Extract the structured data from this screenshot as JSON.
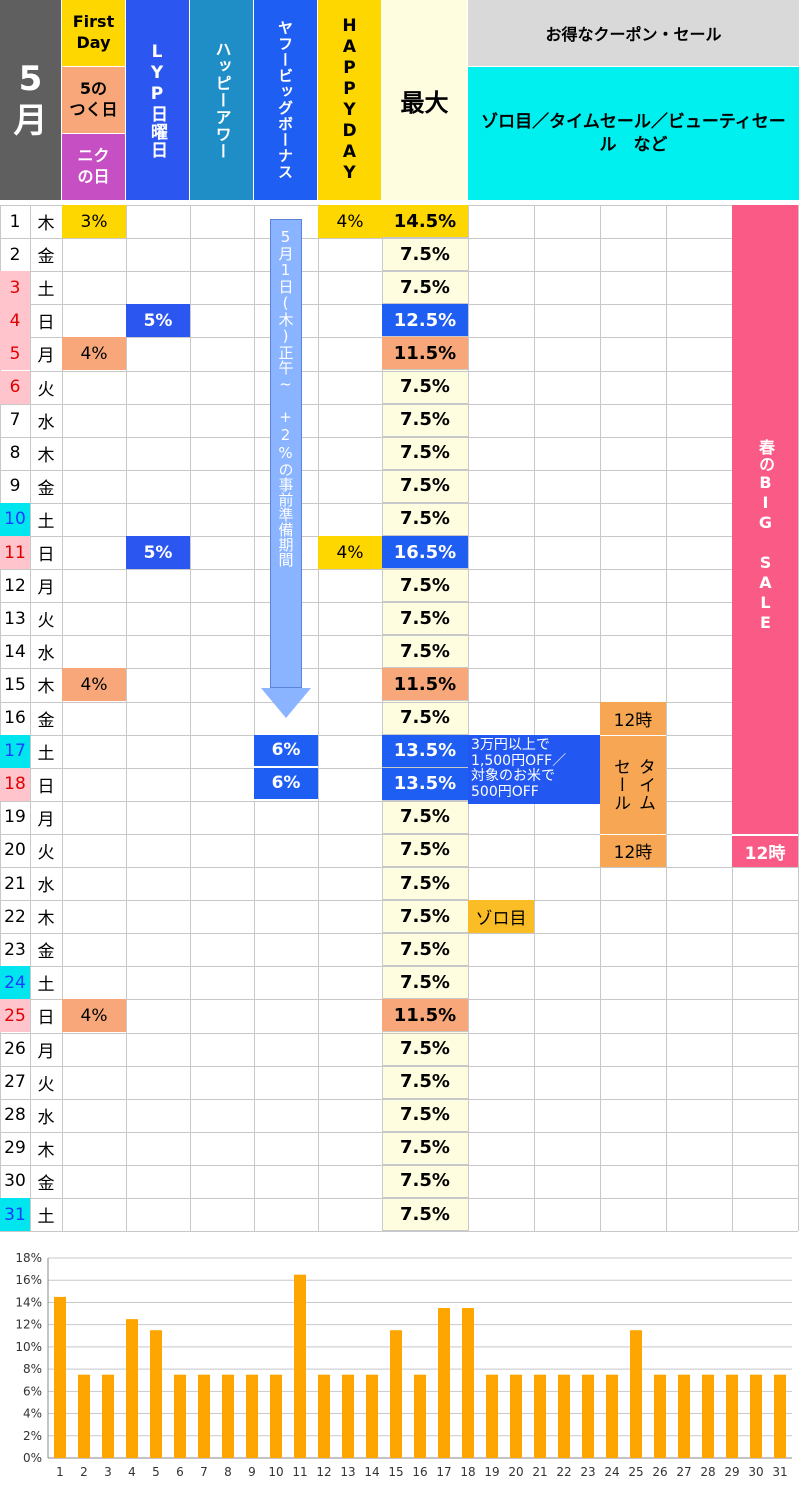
{
  "header": {
    "month": "5\n月",
    "first_day": "First\nDay",
    "five_day": "5の\nつく日",
    "niku_day": "ニク\nの日",
    "lyp_sunday": "LYP日曜日",
    "happy_hour": "ハッピーアワー",
    "yahoo_bonus": "ヤフービッグボーナス",
    "happy_day": "HAPPYDAY",
    "max": "最大",
    "coupon_title": "お得なクーポン・セール",
    "coupon_sub": "ゾロ目／タイムセール／ビューティセール　など"
  },
  "colors": {
    "month_bg": "#5f5f5f",
    "first_day_bg": "#ffd700",
    "five_day_bg": "#f7a77a",
    "niku_bg": "#c64fc4",
    "lyp_bg": "#2c56f0",
    "happy_hour_bg": "#1f8ec7",
    "bonus_bg": "#1f5ef2",
    "happy_day_bg": "#ffd700",
    "max_bg": "#fffde0",
    "coupon_title_bg": "#d9d9d9",
    "coupon_sub_bg": "#00f0f0",
    "saturday_bg": "#00e5ee",
    "holiday_bg": "#ffc4cc",
    "holiday_text": "#e00000",
    "big_sale_bg": "#fa5a86",
    "time_sale_bg": "#f7a653",
    "zorome_bg": "#fbbd26",
    "coupon_box_bg": "#2257f2",
    "bonus_arrow": "#8ab4ff",
    "bar_color": "#ffa500"
  },
  "days": [
    {
      "d": "1",
      "w": "木",
      "t": "n",
      "fd": "3%",
      "hd": "4%",
      "max": "14.5%",
      "m": "bold"
    },
    {
      "d": "2",
      "w": "金",
      "t": "n",
      "max": "7.5%"
    },
    {
      "d": "3",
      "w": "土",
      "t": "h",
      "max": "7.5%"
    },
    {
      "d": "4",
      "w": "日",
      "t": "h",
      "lyp": "5%",
      "max": "12.5%",
      "m": "blue"
    },
    {
      "d": "5",
      "w": "月",
      "t": "h",
      "fd": "4%",
      "fdc": "orange",
      "max": "11.5%",
      "m": "orange"
    },
    {
      "d": "6",
      "w": "火",
      "t": "h",
      "max": "7.5%"
    },
    {
      "d": "7",
      "w": "水",
      "t": "n",
      "max": "7.5%"
    },
    {
      "d": "8",
      "w": "木",
      "t": "n",
      "max": "7.5%"
    },
    {
      "d": "9",
      "w": "金",
      "t": "n",
      "max": "7.5%"
    },
    {
      "d": "10",
      "w": "土",
      "t": "s",
      "max": "7.5%"
    },
    {
      "d": "11",
      "w": "日",
      "t": "h",
      "lyp": "5%",
      "hd": "4%",
      "max": "16.5%",
      "m": "blue"
    },
    {
      "d": "12",
      "w": "月",
      "t": "n",
      "max": "7.5%"
    },
    {
      "d": "13",
      "w": "火",
      "t": "n",
      "max": "7.5%"
    },
    {
      "d": "14",
      "w": "水",
      "t": "n",
      "max": "7.5%"
    },
    {
      "d": "15",
      "w": "木",
      "t": "n",
      "fd": "4%",
      "fdc": "orange",
      "max": "11.5%",
      "m": "orange"
    },
    {
      "d": "16",
      "w": "金",
      "t": "n",
      "max": "7.5%"
    },
    {
      "d": "17",
      "w": "土",
      "t": "s",
      "bonus": "6%",
      "max": "13.5%",
      "m": "blue"
    },
    {
      "d": "18",
      "w": "日",
      "t": "h",
      "bonus": "6%",
      "max": "13.5%",
      "m": "blue"
    },
    {
      "d": "19",
      "w": "月",
      "t": "n",
      "max": "7.5%"
    },
    {
      "d": "20",
      "w": "火",
      "t": "n",
      "max": "7.5%"
    },
    {
      "d": "21",
      "w": "水",
      "t": "n",
      "max": "7.5%"
    },
    {
      "d": "22",
      "w": "木",
      "t": "n",
      "max": "7.5%"
    },
    {
      "d": "23",
      "w": "金",
      "t": "n",
      "max": "7.5%"
    },
    {
      "d": "24",
      "w": "土",
      "t": "s",
      "max": "7.5%"
    },
    {
      "d": "25",
      "w": "日",
      "t": "h",
      "fd": "4%",
      "fdc": "orange",
      "max": "11.5%",
      "m": "orange"
    },
    {
      "d": "26",
      "w": "月",
      "t": "n",
      "max": "7.5%"
    },
    {
      "d": "27",
      "w": "火",
      "t": "n",
      "max": "7.5%"
    },
    {
      "d": "28",
      "w": "水",
      "t": "n",
      "max": "7.5%"
    },
    {
      "d": "29",
      "w": "木",
      "t": "n",
      "max": "7.5%"
    },
    {
      "d": "30",
      "w": "金",
      "t": "n",
      "max": "7.5%"
    },
    {
      "d": "31",
      "w": "土",
      "t": "s",
      "max": "7.5%"
    }
  ],
  "bonus_note": "5月1日(木)正午~　+2%の事前準備期間",
  "big_sale": {
    "label": "春のBIG SALE",
    "end": "12時"
  },
  "time_sale": {
    "start": "12時",
    "label": "タイム\nセール",
    "end": "12時"
  },
  "coupon_note": "3万円以上で\n1,500円OFF／\n対象のお米で\n500円OFF",
  "zorome": "ゾロ目",
  "chart_data": {
    "type": "bar",
    "categories": [
      "1",
      "2",
      "3",
      "4",
      "5",
      "6",
      "7",
      "8",
      "9",
      "10",
      "11",
      "12",
      "13",
      "14",
      "15",
      "16",
      "17",
      "18",
      "19",
      "20",
      "21",
      "22",
      "23",
      "24",
      "25",
      "26",
      "27",
      "28",
      "29",
      "30",
      "31"
    ],
    "values": [
      14.5,
      7.5,
      7.5,
      12.5,
      11.5,
      7.5,
      7.5,
      7.5,
      7.5,
      7.5,
      16.5,
      7.5,
      7.5,
      7.5,
      11.5,
      7.5,
      13.5,
      13.5,
      7.5,
      7.5,
      7.5,
      7.5,
      7.5,
      7.5,
      11.5,
      7.5,
      7.5,
      7.5,
      7.5,
      7.5,
      7.5
    ],
    "ylim": [
      0,
      18
    ],
    "yticks": [
      "0%",
      "2%",
      "4%",
      "6%",
      "8%",
      "10%",
      "12%",
      "14%",
      "16%",
      "18%"
    ],
    "grid": true,
    "title": "",
    "xlabel": "",
    "ylabel": ""
  }
}
